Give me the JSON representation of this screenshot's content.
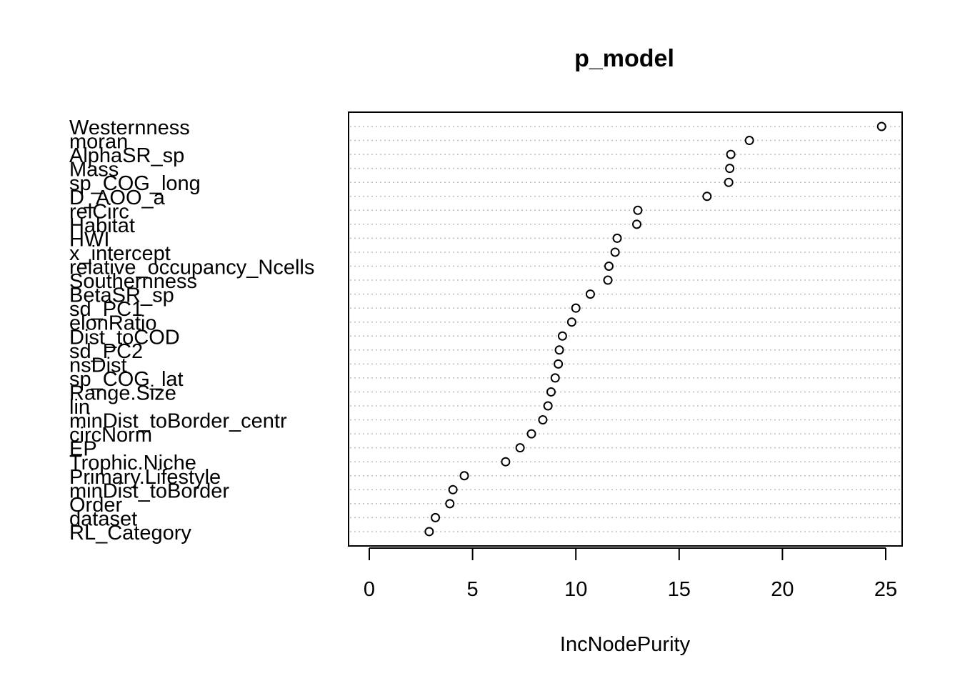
{
  "chart_data": {
    "type": "scatter",
    "title": "p_model",
    "xlabel": "IncNodePurity",
    "ylabel": "",
    "xlim": [
      -1,
      25.8
    ],
    "xticks": [
      0,
      5,
      10,
      15,
      20,
      25
    ],
    "grid": "dotted horizontal lines",
    "series": [
      {
        "categories": [
          "Westernness",
          "moran",
          "AlphaSR_sp",
          "Mass",
          "sp_COG_long",
          "D_AOO_a",
          "relCirc",
          "Habitat",
          "HWI",
          "x_intercept",
          "relative_occupancy_Ncells",
          "Southernness",
          "BetaSR_sp",
          "sd_PC1",
          "elonRatio",
          "Dist_toCOD",
          "sd_PC2",
          "nsDist",
          "sp_COG_lat",
          "Range.Size",
          "lin",
          "minDist_toBorder_centr",
          "circNorm",
          "EP",
          "Trophic.Niche",
          "Primary.Lifestyle",
          "minDist_toBorder",
          "Order",
          "dataset",
          "RL_Category"
        ],
        "values": [
          24.8,
          18.4,
          17.5,
          17.45,
          17.4,
          16.35,
          13.0,
          12.95,
          12.0,
          11.9,
          11.6,
          11.55,
          10.7,
          10.0,
          9.8,
          9.35,
          9.2,
          9.15,
          9.0,
          8.8,
          8.65,
          8.4,
          7.85,
          7.3,
          6.6,
          4.6,
          4.05,
          3.9,
          3.2,
          2.9
        ]
      }
    ]
  }
}
